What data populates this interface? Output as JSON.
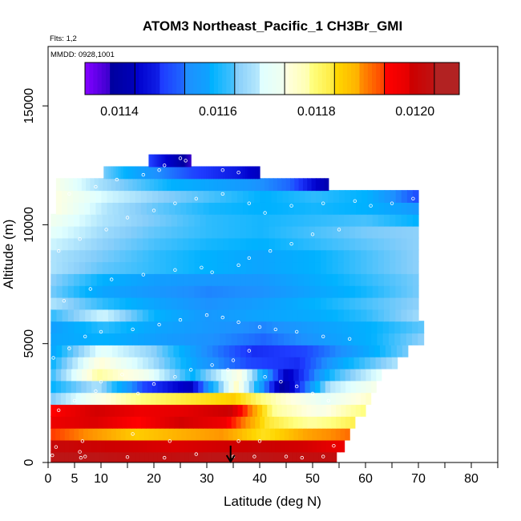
{
  "chart_data": {
    "type": "heatmap",
    "title": "ATOM3 Northeast_Pacific_1 CH3Br_GMI",
    "annotations": [
      "Flts: 1,2",
      "MMDD: 0928,1001"
    ],
    "xlabel": "Latitude (deg N)",
    "ylabel": "Altitude (m)",
    "xlim": [
      0,
      85
    ],
    "ylim": [
      0,
      17500
    ],
    "x_ticks": [
      0,
      5,
      10,
      20,
      30,
      40,
      50,
      60,
      70,
      80
    ],
    "y_ticks": [
      0,
      5000,
      10000,
      15000
    ],
    "colorbar": {
      "range": [
        0.01133,
        0.01209
      ],
      "ticks": [
        "0.0114",
        "0.0116",
        "0.0118",
        "0.0120"
      ],
      "tick_values": [
        0.0114,
        0.0116,
        0.0118,
        0.012
      ],
      "colors": [
        "#7f00ff",
        "#0000a0",
        "#0000cd",
        "#1e3cff",
        "#1e90ff",
        "#00b2ff",
        "#87cefa",
        "#e0ffff",
        "#ffffe0",
        "#ffff80",
        "#ffd700",
        "#ff8c00",
        "#ff0000",
        "#cd0000",
        "#b22222"
      ]
    },
    "x_marker": {
      "latitude": 34.5,
      "symbol": "arrow"
    },
    "layers": [
      {
        "alt": 200,
        "lat_min": 0.5,
        "lat_max": 54.5,
        "vals": [
          0.01207,
          0.01207,
          0.01206,
          0.01206,
          0.01207,
          0.01207,
          0.01206,
          0.01206
        ]
      },
      {
        "alt": 700,
        "lat_min": 0.5,
        "lat_max": 56,
        "vals": [
          0.01205,
          0.01204,
          0.01203,
          0.01202,
          0.01203,
          0.01204,
          0.01203,
          0.012
        ]
      },
      {
        "alt": 1200,
        "lat_min": 0.5,
        "lat_max": 57,
        "vals": [
          0.01196,
          0.01192,
          0.01188,
          0.0119,
          0.01192,
          0.01186,
          0.01191,
          0.01194
        ]
      },
      {
        "alt": 1700,
        "lat_min": 0.5,
        "lat_max": 58,
        "vals": [
          0.012,
          0.01202,
          0.01198,
          0.01203,
          0.012,
          0.01185,
          0.0118,
          0.01184
        ]
      },
      {
        "alt": 2200,
        "lat_min": 0.5,
        "lat_max": 60,
        "vals": [
          0.01198,
          0.01203,
          0.012,
          0.01201,
          0.01204,
          0.0118,
          0.01175,
          0.01182
        ]
      },
      {
        "alt": 2700,
        "lat_min": 0.5,
        "lat_max": 61,
        "vals": [
          0.01165,
          0.01175,
          0.01182,
          0.01185,
          0.01188,
          0.01178,
          0.01172,
          0.01178
        ]
      },
      {
        "alt": 3200,
        "lat_min": 0.5,
        "lat_max": 62,
        "vals": [
          0.0116,
          0.01168,
          0.0115,
          0.01142,
          0.01178,
          0.01138,
          0.01168,
          0.01175
        ]
      },
      {
        "alt": 3700,
        "lat_min": 0.5,
        "lat_max": 63,
        "vals": [
          0.01162,
          0.0118,
          0.01174,
          0.0116,
          0.01176,
          0.01142,
          0.01162,
          0.01172
        ]
      },
      {
        "alt": 4200,
        "lat_min": 0.5,
        "lat_max": 66,
        "vals": [
          0.0116,
          0.01177,
          0.01168,
          0.01157,
          0.0115,
          0.01148,
          0.0116,
          0.01168
        ]
      },
      {
        "alt": 4700,
        "lat_min": 0.5,
        "lat_max": 68,
        "vals": [
          0.01158,
          0.01172,
          0.01166,
          0.01155,
          0.01148,
          0.0115,
          0.01157,
          0.01165
        ]
      },
      {
        "alt": 5200,
        "lat_min": 0.5,
        "lat_max": 71,
        "vals": [
          0.01158,
          0.0116,
          0.01157,
          0.01155,
          0.01152,
          0.01156,
          0.0116,
          0.01166
        ]
      },
      {
        "alt": 5700,
        "lat_min": 0.5,
        "lat_max": 71,
        "vals": [
          0.01157,
          0.01162,
          0.01158,
          0.01156,
          0.01154,
          0.01157,
          0.0116,
          0.01164
        ]
      },
      {
        "alt": 6200,
        "lat_min": 0.5,
        "lat_max": 70,
        "vals": [
          0.01162,
          0.0117,
          0.0116,
          0.01156,
          0.01158,
          0.01159,
          0.01162,
          0.01167
        ]
      },
      {
        "alt": 6700,
        "lat_min": 0.5,
        "lat_max": 70,
        "vals": [
          0.01168,
          0.01162,
          0.01158,
          0.01155,
          0.01157,
          0.0116,
          0.01163,
          0.01166
        ]
      },
      {
        "alt": 7200,
        "lat_min": 0.5,
        "lat_max": 70,
        "vals": [
          0.01165,
          0.01158,
          0.01156,
          0.01154,
          0.01155,
          0.01158,
          0.01161,
          0.01165
        ]
      },
      {
        "alt": 7700,
        "lat_min": 0.5,
        "lat_max": 70,
        "vals": [
          0.01166,
          0.0116,
          0.01157,
          0.01156,
          0.01156,
          0.01159,
          0.01162,
          0.01165
        ]
      },
      {
        "alt": 8200,
        "lat_min": 0.5,
        "lat_max": 70,
        "vals": [
          0.01168,
          0.01164,
          0.01162,
          0.0116,
          0.01158,
          0.0116,
          0.01163,
          0.01166
        ]
      },
      {
        "alt": 8700,
        "lat_min": 0.5,
        "lat_max": 70,
        "vals": [
          0.01168,
          0.01165,
          0.01162,
          0.0116,
          0.01158,
          0.0116,
          0.01163,
          0.01166
        ]
      },
      {
        "alt": 9200,
        "lat_min": 0.5,
        "lat_max": 70,
        "vals": [
          0.0117,
          0.01166,
          0.01163,
          0.01161,
          0.0116,
          0.01162,
          0.01164,
          0.01166
        ]
      },
      {
        "alt": 9700,
        "lat_min": 0.5,
        "lat_max": 70,
        "vals": [
          0.01172,
          0.01167,
          0.01164,
          0.01162,
          0.01161,
          0.01163,
          0.01165,
          0.01166
        ]
      },
      {
        "alt": 10200,
        "lat_min": 0.5,
        "lat_max": 70,
        "vals": [
          0.01174,
          0.01168,
          0.01165,
          0.01162,
          0.01161,
          0.01162,
          0.01163,
          0.0116
        ]
      },
      {
        "alt": 10700,
        "lat_min": 1.5,
        "lat_max": 70,
        "vals": [
          0.01176,
          0.01168,
          0.01164,
          0.01161,
          0.0116,
          0.01161,
          0.0116,
          0.01156
        ]
      },
      {
        "alt": 11200,
        "lat_min": 1.5,
        "lat_max": 70,
        "vals": [
          0.01176,
          0.0117,
          0.01166,
          0.01163,
          0.0116,
          0.01162,
          0.0116,
          0.0115
        ]
      },
      {
        "alt": 11700,
        "lat_min": 1.5,
        "lat_max": 53,
        "vals": [
          0.01175,
          0.01168,
          0.01164,
          0.0116,
          0.01158,
          0.01156,
          0.01152,
          0.0114
        ]
      },
      {
        "alt": 12200,
        "lat_min": 10.5,
        "lat_max": 40,
        "vals": [
          0.01165,
          0.0116,
          0.01156,
          0.01153,
          0.0115,
          0.01148,
          0.01146,
          0.01142
        ]
      },
      {
        "alt": 12700,
        "lat_min": 19,
        "lat_max": 27,
        "vals": [
          0.0115,
          0.01148,
          0.01146,
          0.01144,
          0.01142,
          0.0114,
          0.01138,
          0.01136
        ]
      }
    ],
    "flight_points": [
      [
        0.8,
        300
      ],
      [
        1.5,
        650
      ],
      [
        6,
        450
      ],
      [
        6.5,
        900
      ],
      [
        6.2,
        200
      ],
      [
        7,
        250
      ],
      [
        15,
        230
      ],
      [
        16,
        1200
      ],
      [
        22,
        200
      ],
      [
        23,
        900
      ],
      [
        28,
        350
      ],
      [
        35,
        250
      ],
      [
        36,
        900
      ],
      [
        39,
        250
      ],
      [
        40,
        900
      ],
      [
        45,
        250
      ],
      [
        48,
        200
      ],
      [
        52,
        250
      ],
      [
        55,
        300
      ],
      [
        54,
        700
      ],
      [
        2,
        2200
      ],
      [
        5,
        2600
      ],
      [
        9,
        3000
      ],
      [
        10,
        3400
      ],
      [
        14,
        3700
      ],
      [
        17,
        2900
      ],
      [
        20,
        3300
      ],
      [
        24,
        3600
      ],
      [
        27,
        3900
      ],
      [
        31,
        4100
      ],
      [
        34,
        3900
      ],
      [
        35,
        4300
      ],
      [
        38,
        4700
      ],
      [
        41,
        3600
      ],
      [
        44,
        3400
      ],
      [
        47,
        3200
      ],
      [
        50,
        2900
      ],
      [
        53,
        2600
      ],
      [
        1,
        4400
      ],
      [
        4,
        4800
      ],
      [
        7,
        5300
      ],
      [
        10,
        5500
      ],
      [
        16,
        5600
      ],
      [
        21,
        5800
      ],
      [
        25,
        6000
      ],
      [
        30,
        6200
      ],
      [
        33,
        6100
      ],
      [
        36,
        5900
      ],
      [
        40,
        5700
      ],
      [
        43,
        5600
      ],
      [
        47,
        5500
      ],
      [
        52,
        5300
      ],
      [
        57,
        5200
      ],
      [
        3,
        6800
      ],
      [
        8,
        7300
      ],
      [
        12,
        7700
      ],
      [
        18,
        7900
      ],
      [
        24,
        8100
      ],
      [
        29,
        8200
      ],
      [
        31,
        8000
      ],
      [
        36,
        8300
      ],
      [
        38,
        8600
      ],
      [
        42,
        8900
      ],
      [
        46,
        9200
      ],
      [
        50,
        9600
      ],
      [
        55,
        9800
      ],
      [
        2,
        8900
      ],
      [
        6,
        9400
      ],
      [
        11,
        9800
      ],
      [
        15,
        10300
      ],
      [
        20,
        10600
      ],
      [
        24,
        10900
      ],
      [
        28,
        11100
      ],
      [
        33,
        11300
      ],
      [
        38,
        10900
      ],
      [
        41,
        10500
      ],
      [
        46,
        10800
      ],
      [
        52,
        10900
      ],
      [
        58,
        11000
      ],
      [
        61,
        10800
      ],
      [
        65,
        10900
      ],
      [
        69,
        11100
      ],
      [
        4,
        11300
      ],
      [
        9,
        11600
      ],
      [
        13,
        11900
      ],
      [
        18,
        12100
      ],
      [
        21,
        12300
      ],
      [
        26,
        12700
      ],
      [
        29,
        12900
      ],
      [
        33,
        12300
      ],
      [
        36,
        12200
      ],
      [
        22,
        12500
      ],
      [
        25,
        12800
      ]
    ]
  }
}
